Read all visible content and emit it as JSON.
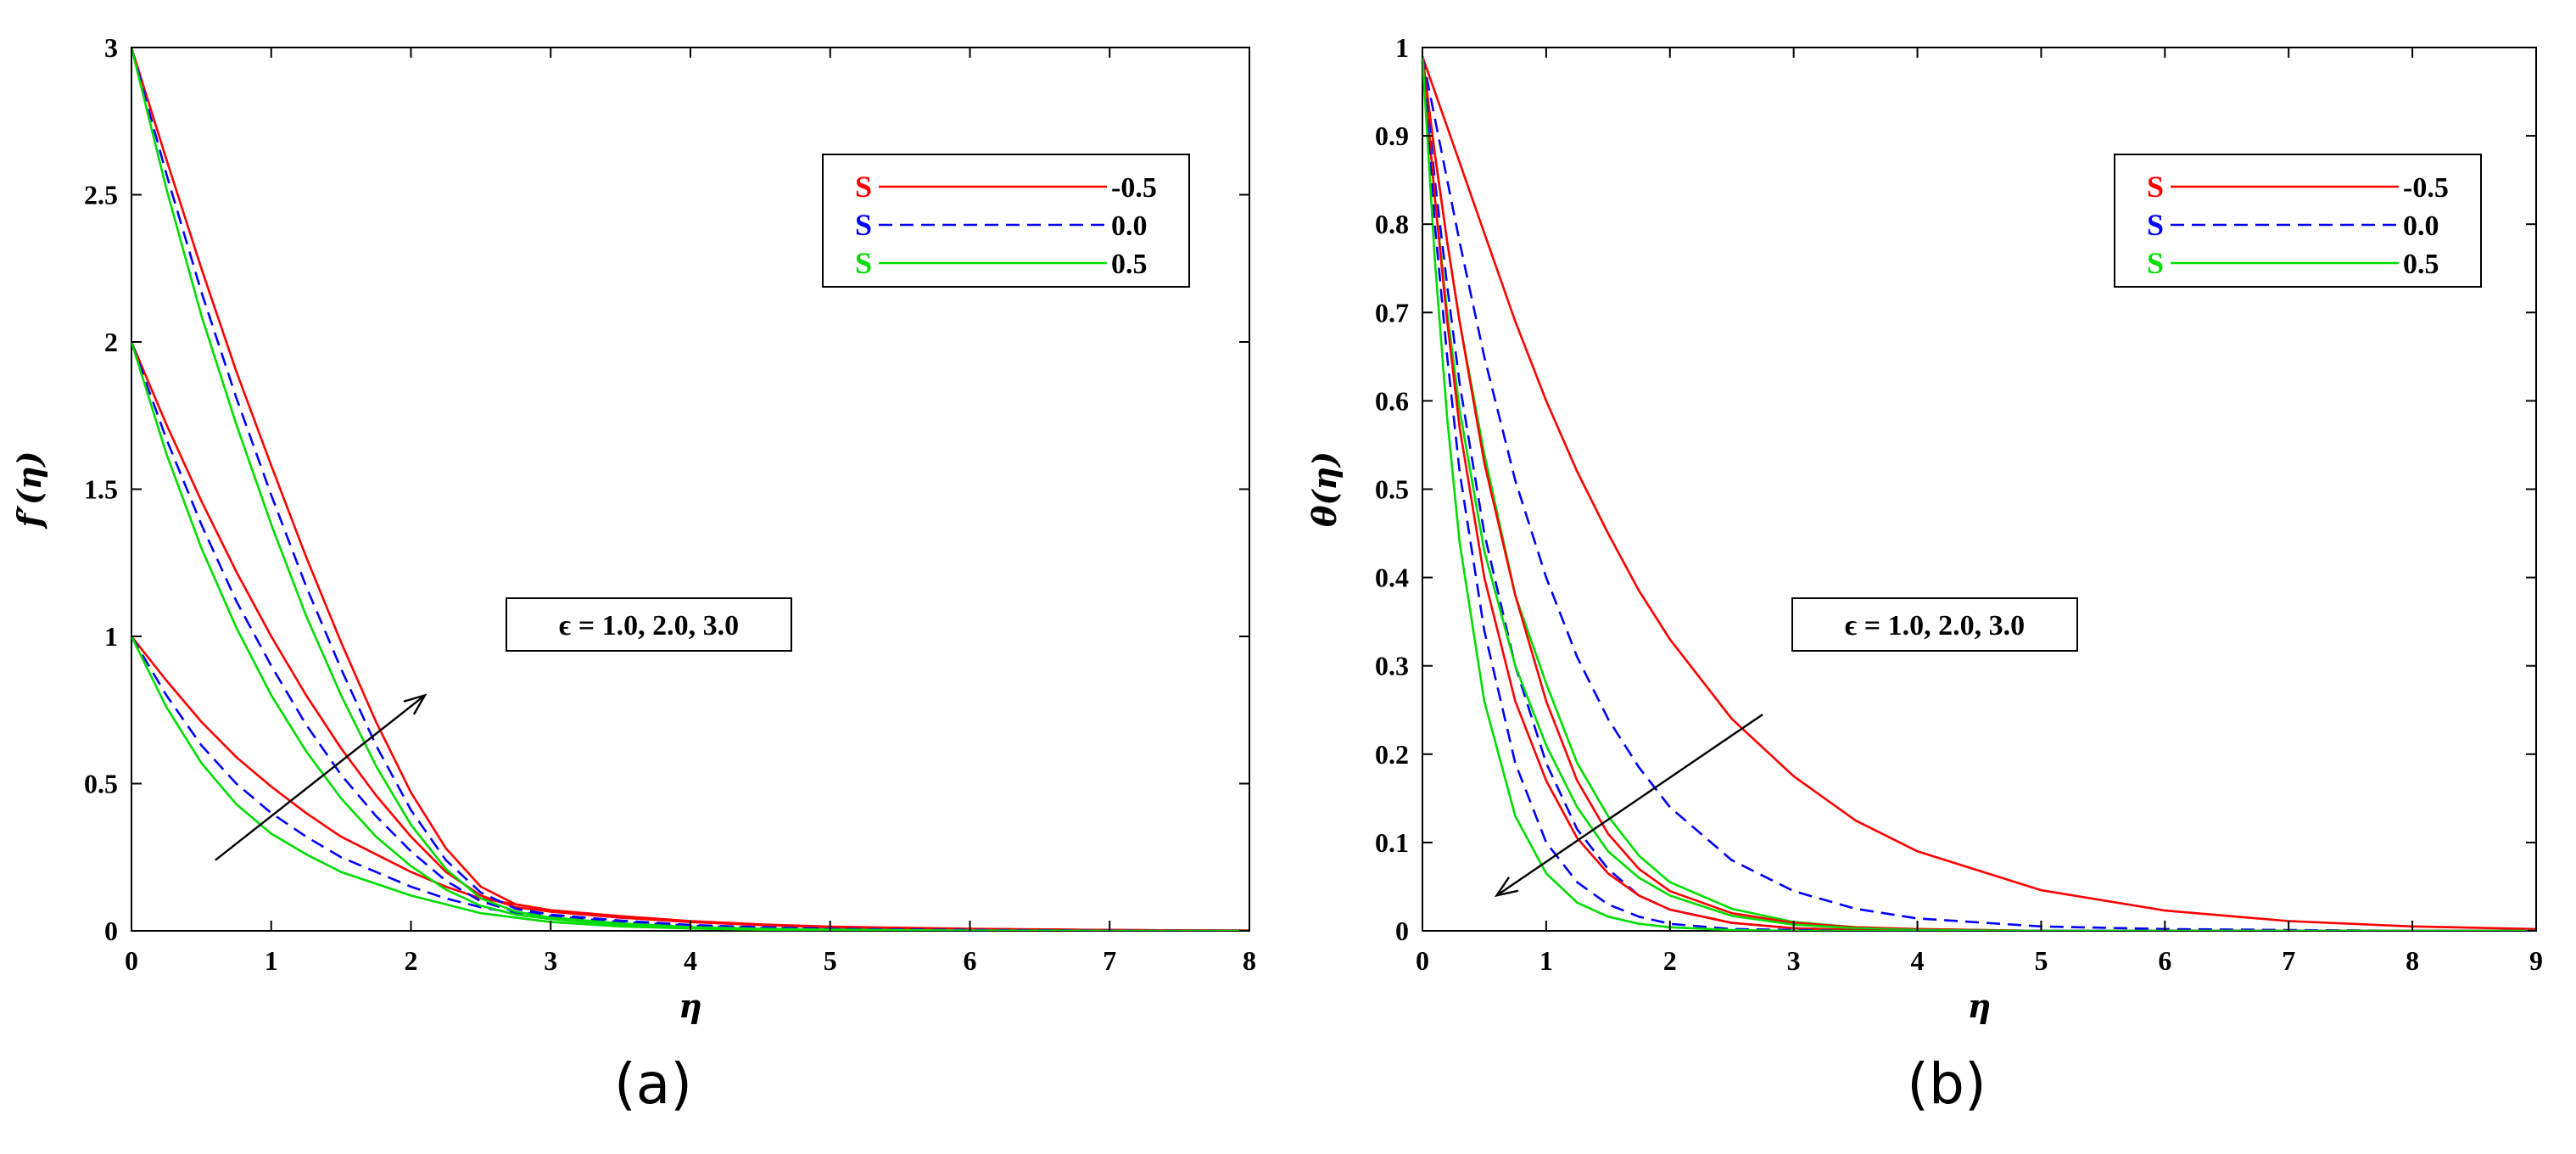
{
  "colors": {
    "s_neg": "#ff0000",
    "s_zero": "#0000ff",
    "s_pos": "#00dd00"
  },
  "chart_data": [
    {
      "type": "line",
      "panel_label": "(a)",
      "xlabel": "η",
      "ylabel": "f′(η)",
      "xlim": [
        0,
        8
      ],
      "ylim": [
        0,
        3
      ],
      "xticks": [
        "0",
        "1",
        "2",
        "3",
        "4",
        "5",
        "6",
        "7",
        "8"
      ],
      "yticks": [
        "0",
        "0.5",
        "1",
        "1.5",
        "2",
        "2.5",
        "3"
      ],
      "grid": false,
      "legend_position": "top-right",
      "legend": [
        {
          "symbol": "S",
          "value": "-0.5",
          "color": "#ff0000",
          "style": "solid"
        },
        {
          "symbol": "S",
          "value": "0.0",
          "color": "#0000ff",
          "style": "dashed"
        },
        {
          "symbol": "S",
          "value": "0.5",
          "color": "#00dd00",
          "style": "solid"
        }
      ],
      "annotation": "ϵ = 1.0, 2.0, 3.0",
      "arrow": {
        "from": [
          0.6,
          0.24
        ],
        "to": [
          2.1,
          0.8
        ]
      },
      "x": [
        0,
        0.25,
        0.5,
        0.75,
        1,
        1.25,
        1.5,
        1.75,
        2,
        2.25,
        2.5,
        2.75,
        3,
        3.5,
        4,
        4.5,
        5,
        6,
        7,
        8
      ],
      "series": [
        {
          "S": "-0.5",
          "epsilon": "1.0",
          "color": "#ff0000",
          "style": "solid",
          "values": [
            1.0,
            0.85,
            0.71,
            0.59,
            0.49,
            0.4,
            0.32,
            0.26,
            0.2,
            0.15,
            0.11,
            0.09,
            0.07,
            0.045,
            0.03,
            0.02,
            0.012,
            0.006,
            0.003,
            0.001
          ]
        },
        {
          "S": "0.0",
          "epsilon": "1.0",
          "color": "#0000ff",
          "style": "dashed",
          "values": [
            1.0,
            0.8,
            0.63,
            0.5,
            0.4,
            0.32,
            0.25,
            0.2,
            0.15,
            0.11,
            0.08,
            0.06,
            0.045,
            0.025,
            0.015,
            0.009,
            0.005,
            0.002,
            0.001,
            0.0
          ]
        },
        {
          "S": "0.5",
          "epsilon": "1.0",
          "color": "#00dd00",
          "style": "solid",
          "values": [
            1.0,
            0.76,
            0.57,
            0.43,
            0.33,
            0.26,
            0.2,
            0.16,
            0.12,
            0.09,
            0.06,
            0.045,
            0.03,
            0.015,
            0.008,
            0.004,
            0.002,
            0.001,
            0.0,
            0.0
          ]
        },
        {
          "S": "-0.5",
          "epsilon": "2.0",
          "color": "#ff0000",
          "style": "solid",
          "values": [
            2.0,
            1.72,
            1.46,
            1.22,
            1.0,
            0.8,
            0.62,
            0.46,
            0.32,
            0.2,
            0.12,
            0.08,
            0.065,
            0.045,
            0.03,
            0.02,
            0.012,
            0.006,
            0.003,
            0.001
          ]
        },
        {
          "S": "0.0",
          "epsilon": "2.0",
          "color": "#0000ff",
          "style": "dashed",
          "values": [
            2.0,
            1.67,
            1.38,
            1.12,
            0.9,
            0.7,
            0.53,
            0.39,
            0.27,
            0.17,
            0.1,
            0.065,
            0.05,
            0.03,
            0.018,
            0.01,
            0.006,
            0.002,
            0.001,
            0.0
          ]
        },
        {
          "S": "0.5",
          "epsilon": "2.0",
          "color": "#00dd00",
          "style": "solid",
          "values": [
            2.0,
            1.62,
            1.3,
            1.03,
            0.8,
            0.61,
            0.45,
            0.32,
            0.22,
            0.14,
            0.085,
            0.055,
            0.04,
            0.02,
            0.01,
            0.005,
            0.003,
            0.001,
            0.0,
            0.0
          ]
        },
        {
          "S": "-0.5",
          "epsilon": "3.0",
          "color": "#ff0000",
          "style": "solid",
          "values": [
            3.0,
            2.62,
            2.25,
            1.9,
            1.58,
            1.27,
            0.98,
            0.71,
            0.47,
            0.28,
            0.15,
            0.09,
            0.07,
            0.05,
            0.033,
            0.022,
            0.014,
            0.007,
            0.003,
            0.001
          ]
        },
        {
          "S": "0.0",
          "epsilon": "3.0",
          "color": "#0000ff",
          "style": "dashed",
          "values": [
            3.0,
            2.57,
            2.17,
            1.81,
            1.48,
            1.17,
            0.89,
            0.63,
            0.41,
            0.24,
            0.13,
            0.075,
            0.055,
            0.035,
            0.02,
            0.012,
            0.007,
            0.003,
            0.001,
            0.0
          ]
        },
        {
          "S": "0.5",
          "epsilon": "3.0",
          "color": "#00dd00",
          "style": "solid",
          "values": [
            3.0,
            2.52,
            2.09,
            1.72,
            1.38,
            1.07,
            0.8,
            0.56,
            0.36,
            0.21,
            0.11,
            0.065,
            0.045,
            0.025,
            0.013,
            0.007,
            0.004,
            0.001,
            0.0,
            0.0
          ]
        }
      ]
    },
    {
      "type": "line",
      "panel_label": "(b)",
      "xlabel": "η",
      "ylabel": "θ(η)",
      "xlim": [
        0,
        9
      ],
      "ylim": [
        0,
        1
      ],
      "xticks": [
        "0",
        "1",
        "2",
        "3",
        "4",
        "5",
        "6",
        "7",
        "8",
        "9"
      ],
      "yticks": [
        "0",
        "0.1",
        "0.2",
        "0.3",
        "0.4",
        "0.5",
        "0.6",
        "0.7",
        "0.8",
        "0.9",
        "1"
      ],
      "grid": false,
      "legend_position": "top-right",
      "legend": [
        {
          "symbol": "S",
          "value": "-0.5",
          "color": "#ff0000",
          "style": "solid"
        },
        {
          "symbol": "S",
          "value": "0.0",
          "color": "#0000ff",
          "style": "dashed"
        },
        {
          "symbol": "S",
          "value": "0.5",
          "color": "#00dd00",
          "style": "solid"
        }
      ],
      "annotation": "ϵ = 1.0, 2.0, 3.0",
      "arrow": {
        "from": [
          2.75,
          0.245
        ],
        "to": [
          0.6,
          0.04
        ]
      },
      "x": [
        0,
        0.1,
        0.2,
        0.3,
        0.5,
        0.75,
        1,
        1.25,
        1.5,
        1.75,
        2,
        2.5,
        3,
        3.5,
        4,
        5,
        6,
        7,
        8,
        9
      ],
      "series": [
        {
          "S": "-0.5",
          "epsilon": "1.0",
          "color": "#ff0000",
          "style": "solid",
          "values": [
            0.99,
            0.95,
            0.91,
            0.87,
            0.79,
            0.69,
            0.6,
            0.52,
            0.45,
            0.385,
            0.33,
            0.24,
            0.175,
            0.125,
            0.09,
            0.046,
            0.023,
            0.011,
            0.005,
            0.002
          ]
        },
        {
          "S": "0.0",
          "epsilon": "1.0",
          "color": "#0000ff",
          "style": "dashed",
          "values": [
            0.99,
            0.92,
            0.85,
            0.78,
            0.65,
            0.51,
            0.4,
            0.31,
            0.24,
            0.185,
            0.14,
            0.08,
            0.045,
            0.025,
            0.014,
            0.005,
            0.002,
            0.001,
            0.0,
            0.0
          ]
        },
        {
          "S": "0.5",
          "epsilon": "1.0",
          "color": "#00dd00",
          "style": "solid",
          "values": [
            0.99,
            0.88,
            0.78,
            0.69,
            0.54,
            0.38,
            0.28,
            0.19,
            0.13,
            0.085,
            0.055,
            0.025,
            0.01,
            0.004,
            0.002,
            0.0,
            0.0,
            0.0,
            0.0,
            0.0
          ]
        },
        {
          "S": "-0.5",
          "epsilon": "2.0",
          "color": "#ff0000",
          "style": "solid",
          "values": [
            0.99,
            0.88,
            0.78,
            0.69,
            0.53,
            0.38,
            0.26,
            0.17,
            0.11,
            0.07,
            0.045,
            0.02,
            0.009,
            0.004,
            0.002,
            0.0,
            0.0,
            0.0,
            0.0,
            0.0
          ]
        },
        {
          "S": "0.0",
          "epsilon": "2.0",
          "color": "#0000ff",
          "style": "dashed",
          "values": [
            0.99,
            0.85,
            0.73,
            0.62,
            0.45,
            0.3,
            0.19,
            0.115,
            0.07,
            0.04,
            0.024,
            0.009,
            0.003,
            0.001,
            0.0,
            0.0,
            0.0,
            0.0,
            0.0,
            0.0
          ]
        },
        {
          "S": "0.5",
          "epsilon": "2.0",
          "color": "#00dd00",
          "style": "solid",
          "values": [
            0.99,
            0.83,
            0.7,
            0.59,
            0.43,
            0.3,
            0.21,
            0.14,
            0.09,
            0.06,
            0.04,
            0.017,
            0.007,
            0.003,
            0.001,
            0.0,
            0.0,
            0.0,
            0.0,
            0.0
          ]
        },
        {
          "S": "-0.5",
          "epsilon": "3.0",
          "color": "#ff0000",
          "style": "solid",
          "values": [
            0.99,
            0.83,
            0.69,
            0.57,
            0.4,
            0.26,
            0.17,
            0.105,
            0.065,
            0.04,
            0.024,
            0.009,
            0.003,
            0.001,
            0.0,
            0.0,
            0.0,
            0.0,
            0.0,
            0.0
          ]
        },
        {
          "S": "0.0",
          "epsilon": "3.0",
          "color": "#0000ff",
          "style": "dashed",
          "values": [
            0.99,
            0.8,
            0.65,
            0.52,
            0.34,
            0.19,
            0.1,
            0.055,
            0.03,
            0.016,
            0.008,
            0.002,
            0.001,
            0.0,
            0.0,
            0.0,
            0.0,
            0.0,
            0.0,
            0.0
          ]
        },
        {
          "S": "0.5",
          "epsilon": "3.0",
          "color": "#00dd00",
          "style": "solid",
          "values": [
            0.99,
            0.76,
            0.58,
            0.44,
            0.26,
            0.13,
            0.065,
            0.032,
            0.016,
            0.008,
            0.004,
            0.001,
            0.0,
            0.0,
            0.0,
            0.0,
            0.0,
            0.0,
            0.0,
            0.0
          ]
        }
      ]
    }
  ]
}
